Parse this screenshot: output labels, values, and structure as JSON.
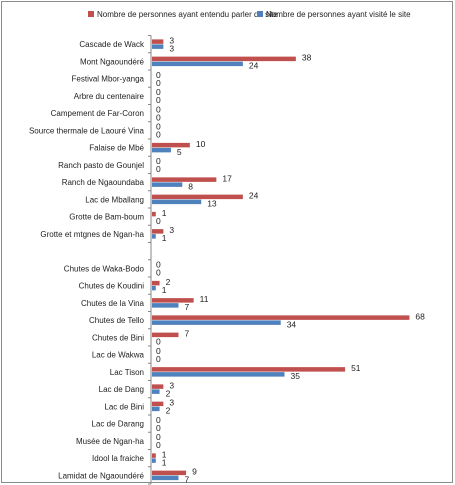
{
  "chart_data": {
    "type": "bar",
    "orientation": "horizontal",
    "categories": [
      "Cascade de Wack",
      "Mont Ngaoundéré",
      "Festival Mbor-yanga",
      "Arbre du centenaire",
      "Campement de Far-Coron",
      "Source thermale de Laouré Vina",
      "Falaise de Mbé",
      "Ranch pasto de Gounjel",
      "Ranch de Ngaoundaba",
      "Lac de Mballang",
      "Grotte de Bam-boum",
      "Grotte et mtgnes de Ngan-ha",
      "",
      "Chutes de Waka-Bodo",
      "Chutes de Koudini",
      "Chutes de la Vina",
      "Chutes de Tello",
      "Chutes de Bini",
      "Lac de Wakwa",
      "Lac Tison",
      "Lac de Dang",
      "Lac de Bini",
      "Lac de Darang",
      "Musée de Ngan-ha",
      "Idool la fraiche",
      "Lamidat de Ngaoundéré"
    ],
    "series": [
      {
        "name": "Nombre de personnes ayant entendu parler du site",
        "color": "#c0504d",
        "values": [
          3,
          38,
          0,
          0,
          0,
          0,
          10,
          0,
          17,
          24,
          1,
          3,
          null,
          0,
          2,
          11,
          68,
          7,
          0,
          51,
          3,
          3,
          0,
          0,
          1,
          9
        ]
      },
      {
        "name": "Nombre de personnes ayant visité le site",
        "color": "#4f81bd",
        "values": [
          3,
          24,
          0,
          0,
          0,
          0,
          5,
          0,
          8,
          13,
          0,
          1,
          null,
          0,
          1,
          7,
          34,
          0,
          0,
          35,
          2,
          2,
          0,
          0,
          1,
          7
        ]
      }
    ],
    "xlim": [
      0,
      70
    ],
    "grid": false,
    "legend_position": "top"
  }
}
